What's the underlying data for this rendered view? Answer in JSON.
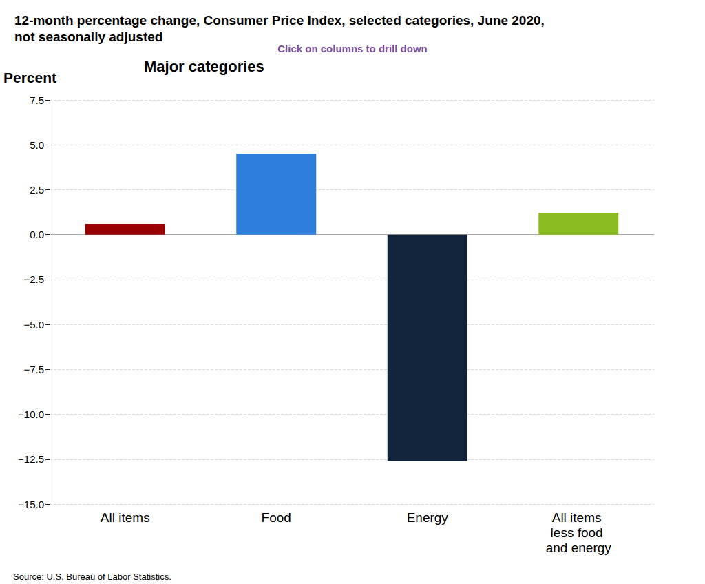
{
  "chart_data": {
    "type": "bar",
    "title": "12-month percentage change, Consumer Price Index, selected categories, June 2020, not seasonally adjusted",
    "subtitle": "Click on columns to drill down",
    "annotations": [
      "Major categories"
    ],
    "ylabel": "Percent",
    "source": "Source: U.S. Bureau of Labor Statistics.",
    "categories": [
      "All items",
      "Food",
      "Energy",
      "All items less food and energy"
    ],
    "values": [
      0.6,
      4.5,
      -12.6,
      1.2
    ],
    "colors": [
      "#990000",
      "#2e7fdb",
      "#12253d",
      "#8bbd22"
    ],
    "ylim": [
      -15,
      7.5
    ],
    "yticks": [
      {
        "value": -15,
        "label": "−15.0"
      },
      {
        "value": -12.5,
        "label": "−12.5"
      },
      {
        "value": -10,
        "label": "−10.0"
      },
      {
        "value": -7.5,
        "label": "−7.5"
      },
      {
        "value": -5,
        "label": "−5.0"
      },
      {
        "value": -2.5,
        "label": "−2.5"
      },
      {
        "value": 0,
        "label": "0.0"
      },
      {
        "value": 2.5,
        "label": "2.5"
      },
      {
        "value": 5,
        "label": "5.0"
      },
      {
        "value": 7.5,
        "label": "7.5"
      }
    ],
    "grid": true
  }
}
